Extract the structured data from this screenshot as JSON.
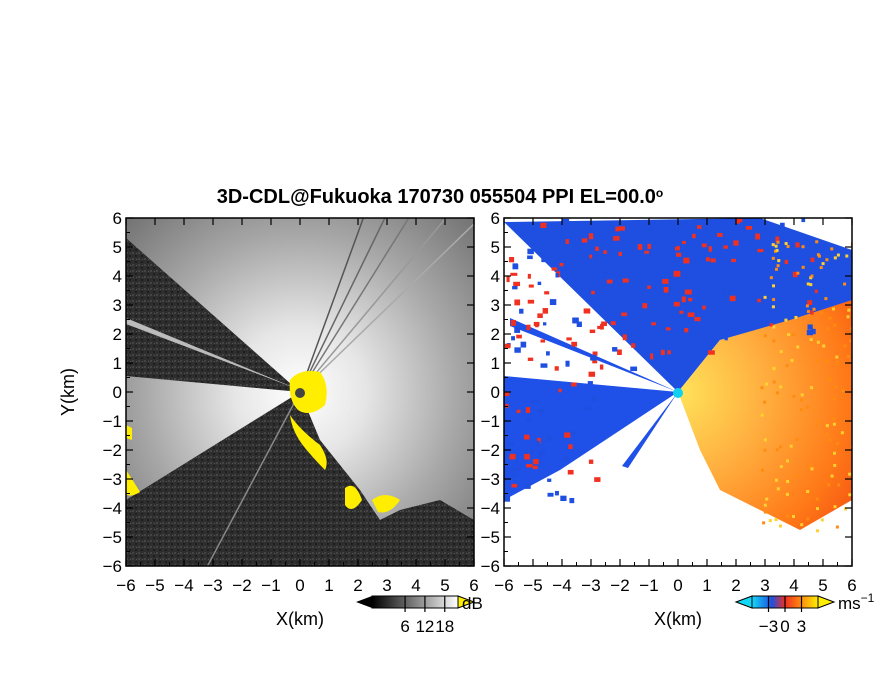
{
  "title_main": "3D-CDL@Fukuoka 170730 055504 PPI EL=00.0",
  "title_degree": "o",
  "chart_data": [
    {
      "type": "heatmap",
      "panel": "left",
      "quantity": "received signal intensity",
      "xlabel": "X(km)",
      "ylabel": "Y(km)",
      "xlim": [
        -6,
        6
      ],
      "ylim": [
        -6,
        6
      ],
      "xticks": [
        -6,
        -5,
        -4,
        -3,
        -2,
        -1,
        0,
        1,
        2,
        3,
        4,
        5,
        6
      ],
      "yticks": [
        -6,
        -5,
        -4,
        -3,
        -2,
        -1,
        0,
        1,
        2,
        3,
        4,
        5,
        6
      ],
      "colorbar": {
        "unit": "dB",
        "ticks": [
          6,
          12,
          18
        ],
        "colormap": "grayscale with yellow overflow"
      }
    },
    {
      "type": "heatmap",
      "panel": "right",
      "quantity": "radial velocity",
      "xlabel": "X(km)",
      "xlim": [
        -6,
        6
      ],
      "ylim": [
        -6,
        6
      ],
      "xticks": [
        -6,
        -5,
        -4,
        -3,
        -2,
        -1,
        0,
        1,
        2,
        3,
        4,
        5,
        6
      ],
      "yticks": [
        -6,
        -5,
        -4,
        -3,
        -2,
        -1,
        0,
        1,
        2,
        3,
        4,
        5,
        6
      ],
      "colorbar": {
        "unit": "ms",
        "unit_exponent": "−1",
        "ticks": [
          -3,
          0,
          3
        ],
        "colormap": "cyan-blue-red-orange-yellow"
      }
    }
  ],
  "colors": {
    "overflow_yellow": "#ffee00",
    "blue": "#1f4fe0",
    "red": "#f03020",
    "orange": "#ff8c10",
    "origin_cyan": "#10d0f0"
  }
}
